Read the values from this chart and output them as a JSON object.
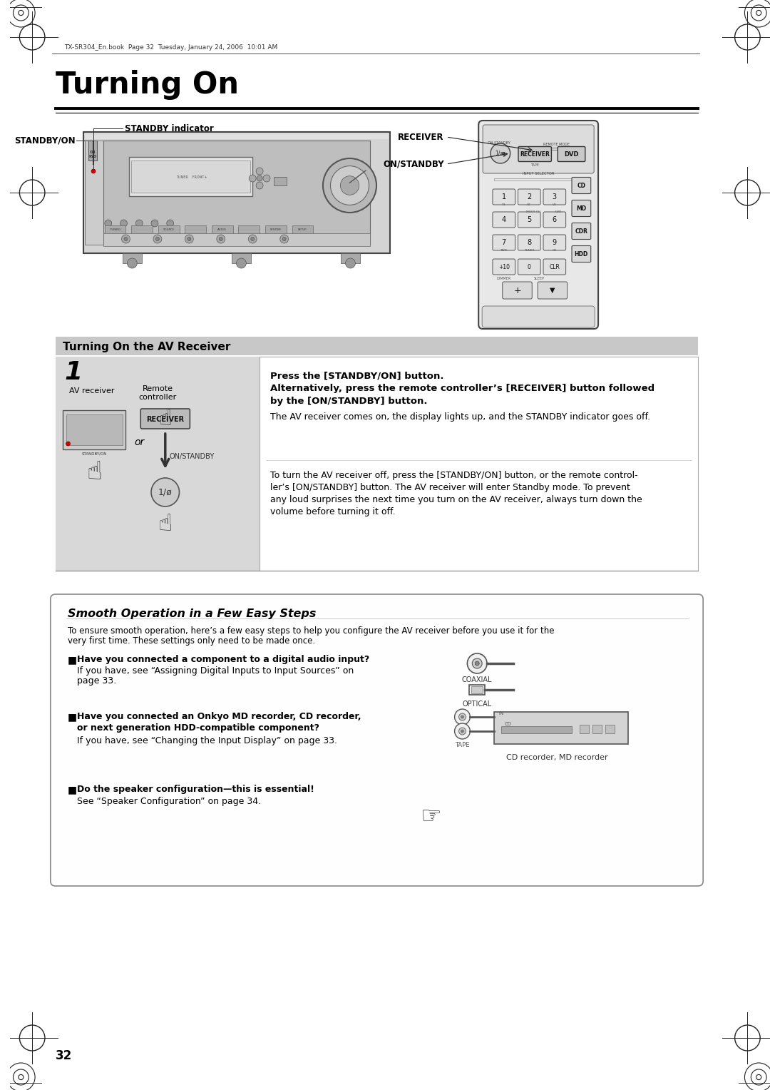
{
  "page_bg": "#ffffff",
  "page_width": 10.8,
  "page_height": 15.28,
  "header_text": "TX-SR304_En.book  Page 32  Tuesday, January 24, 2006  10:01 AM",
  "title": "Turning On",
  "section1_header": "Turning On the AV Receiver",
  "step_number": "1",
  "step_bold1": "Press the [STANDBY/ON] button.",
  "step_bold2a": "Alternatively, press the remote controller’s [RECEIVER] button followed",
  "step_bold2b": "by the [ON/STANDBY] button.",
  "step_normal1": "The AV receiver comes on, the display lights up, and the STANDBY indicator goes off.",
  "para2_lines": [
    "To turn the AV receiver off, press the [STANDBY/ON] button, or the remote control-",
    "ler’s [ON/STANDBY] button. The AV receiver will enter Standby mode. To prevent",
    "any loud surprises the next time you turn on the AV receiver, always turn down the",
    "volume before turning it off."
  ],
  "av_receiver_label": "AV receiver",
  "remote_label_line1": "Remote",
  "remote_label_line2": "controller",
  "or_label": "or",
  "on_standby_label": "ON/STANDBY",
  "standby_on_label": "STANDBY/ON",
  "standby_ind_label": "STANDBY indicator",
  "receiver_label": "RECEIVER",
  "on_standby_remote_label": "ON/STANDBY",
  "section2_header": "Smooth Operation in a Few Easy Steps",
  "intro_lines": [
    "To ensure smooth operation, here’s a few easy steps to help you configure the AV receiver before you use it for the",
    "very first time. These settings only need to be made once."
  ],
  "bullet1_bold": "Have you connected a component to a digital audio input?",
  "bullet1_lines": [
    "If you have, see “Assigning Digital Inputs to Input Sources” on",
    "page 33."
  ],
  "coaxial_label": "COAXIAL",
  "optical_label": "OPTICAL",
  "bullet2_bold1": "Have you connected an Onkyo MD recorder, CD recorder,",
  "bullet2_bold2": "or next generation HDD-compatible component?",
  "bullet2_normal": "If you have, see “Changing the Input Display” on page 33.",
  "cd_md_label": "CD recorder, MD recorder",
  "tape_label": "TAPE",
  "bullet3_bold": "Do the speaker configuration—this is essential!",
  "bullet3_normal": "See “Speaker Configuration” on page 34.",
  "page_number": "32"
}
